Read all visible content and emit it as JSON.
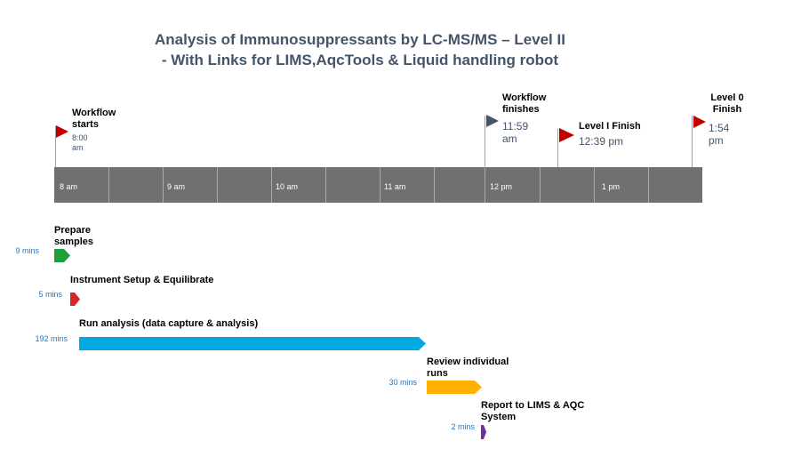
{
  "title": {
    "line1": "Analysis of Immunosuppressants by LC-MS/MS – Level II",
    "line2": "- With Links for LIMS,AqcTools & Liquid handling robot"
  },
  "colors": {
    "title": "#44546a",
    "axis": "#707070",
    "flag_red": "#c00000",
    "flag_dark": "#44546a",
    "prepare": "#1f9f3a",
    "setup": "#d62728",
    "run": "#00a9e0",
    "review": "#ffb000",
    "report": "#7030a0",
    "duration_text": "#2e75b6"
  },
  "axis_hours": [
    "8 am",
    "9 am",
    "10 am",
    "11 am",
    "12 pm",
    "1 pm"
  ],
  "milestones": {
    "start": {
      "title": "Workflow starts",
      "time": "8:00 am"
    },
    "finish": {
      "title": "Workflow finishes",
      "time": "11:59 am"
    },
    "level1": {
      "title": "Level I Finish",
      "time": "12:39 pm"
    },
    "level0": {
      "title": "Level 0 Finish",
      "time": "1:54 pm"
    }
  },
  "tasks": [
    {
      "title": "Prepare samples",
      "duration": "9 mins",
      "color": "#1f9f3a"
    },
    {
      "title": "Instrument Setup & Equilibrate",
      "duration": "5 mins",
      "color": "#d62728"
    },
    {
      "title": "Run analysis (data capture & analysis)",
      "duration": "192 mins",
      "color": "#00a9e0"
    },
    {
      "title": "Review individual runs",
      "duration": "30 mins",
      "color": "#ffb000"
    },
    {
      "title": "Report to LIMS & AQC System",
      "duration": "2 mins",
      "color": "#7030a0"
    }
  ]
}
